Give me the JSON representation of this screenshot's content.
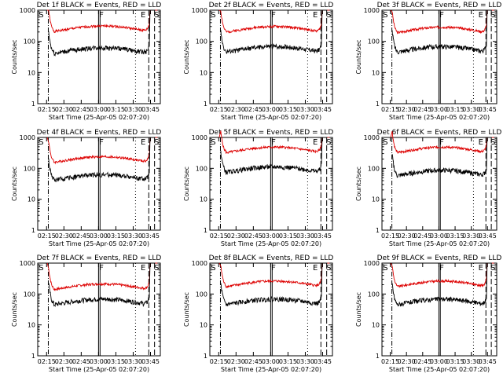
{
  "chart_data": [
    {
      "type": "line",
      "title": "Det 1f BLACK = Events, RED = LLD",
      "seed": 1,
      "ev": 50,
      "lld": 250,
      "ylabel": "Counts/sec",
      "xlabel": "Start Time (25-Apr-05 02:07:20)"
    },
    {
      "type": "line",
      "title": "Det 2f BLACK = Events, RED = LLD",
      "seed": 2,
      "ev": 55,
      "lld": 240,
      "ylabel": "Counts/sec",
      "xlabel": "Start Time (25-Apr-05 02:07:20)"
    },
    {
      "type": "line",
      "title": "Det 3f BLACK = Events, RED = LLD",
      "seed": 3,
      "ev": 55,
      "lld": 230,
      "ylabel": "Counts/sec",
      "xlabel": "Start Time (25-Apr-05 02:07:20)"
    },
    {
      "type": "line",
      "title": "Det 4f BLACK = Events, RED = LLD",
      "seed": 4,
      "ev": 50,
      "lld": 190,
      "ylabel": "Counts/sec",
      "xlabel": "Start Time (25-Apr-05 02:07:20)"
    },
    {
      "type": "line",
      "title": "Det 5f BLACK = Events, RED = LLD",
      "seed": 5,
      "ev": 90,
      "lld": 390,
      "ylabel": "Counts/sec",
      "xlabel": "Start Time (25-Apr-05 02:07:20)"
    },
    {
      "type": "line",
      "title": "Det 6f BLACK = Events, RED = LLD",
      "seed": 6,
      "ev": 70,
      "lld": 390,
      "ylabel": "Counts/sec",
      "xlabel": "Start Time (25-Apr-05 02:07:20)"
    },
    {
      "type": "line",
      "title": "Det 7f BLACK = Events, RED = LLD",
      "seed": 7,
      "ev": 55,
      "lld": 170,
      "ylabel": "Counts/sec",
      "xlabel": "Start Time (25-Apr-05 02:07:20)"
    },
    {
      "type": "line",
      "title": "Det 8f BLACK = Events, RED = LLD",
      "seed": 8,
      "ev": 55,
      "lld": 210,
      "ylabel": "Counts/sec",
      "xlabel": "Start Time (25-Apr-05 02:07:20)"
    },
    {
      "type": "line",
      "title": "Det 9f BLACK = Events, RED = LLD",
      "seed": 9,
      "ev": 55,
      "lld": 210,
      "ylabel": "Counts/sec",
      "xlabel": "Start Time (25-Apr-05 02:07:20)"
    }
  ],
  "shared": {
    "x_ticks": [
      "02:15",
      "02:30",
      "02:45",
      "03:00",
      "03:15",
      "03:30",
      "03:45"
    ],
    "x_tick_minutes": [
      0,
      15,
      30,
      45,
      60,
      75,
      90
    ],
    "xlim_minutes": [
      -7.67,
      98.5
    ],
    "y_log": true,
    "ylim": [
      1,
      1000
    ],
    "y_ticks": [
      "1",
      "10",
      "100",
      "1000"
    ],
    "y_tick_values": [
      1,
      10,
      100,
      1000
    ],
    "markers": [
      {
        "label": "S",
        "minute": -6.8
      },
      {
        "label": "F",
        "minute": 45.5
      },
      {
        "label": "E",
        "minute": 81.5
      },
      {
        "label": "S",
        "minute": 93.5
      }
    ],
    "colors": {
      "events": "#000000",
      "lld": "#dd0000"
    }
  }
}
